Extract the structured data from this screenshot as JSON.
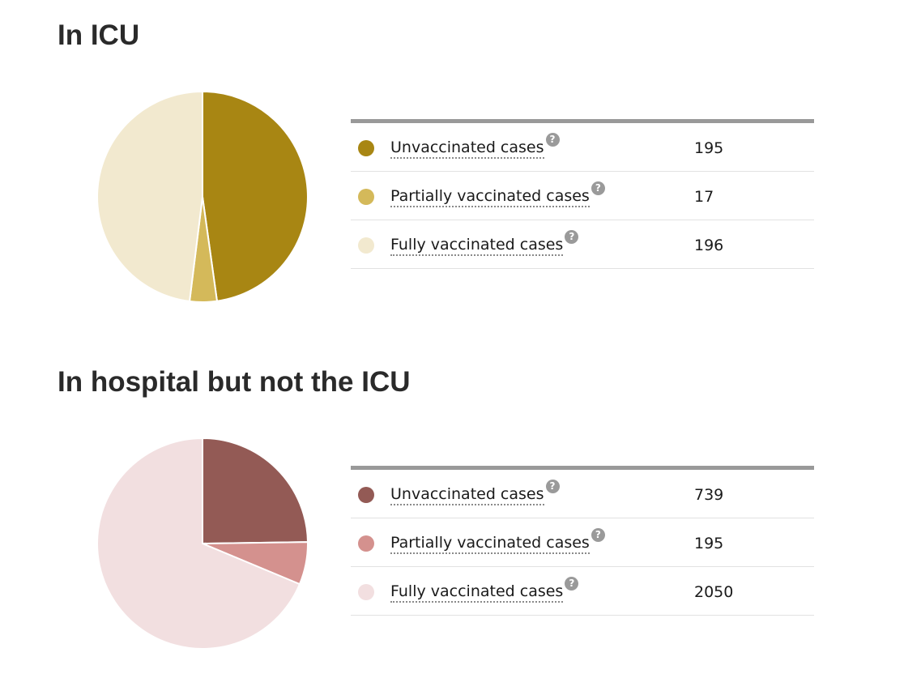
{
  "chart_data": [
    {
      "type": "pie",
      "title": "In ICU",
      "categories": [
        "Unvaccinated cases",
        "Partially vaccinated cases",
        "Fully vaccinated cases"
      ],
      "values": [
        195,
        17,
        196
      ],
      "colors": [
        "#a88613",
        "#d4b95a",
        "#f2e9cf"
      ],
      "help_icon": "question-icon",
      "legend": "right"
    },
    {
      "type": "pie",
      "title": "In hospital but not the ICU",
      "categories": [
        "Unvaccinated cases",
        "Partially vaccinated cases",
        "Fully vaccinated cases"
      ],
      "values": [
        739,
        195,
        2050
      ],
      "colors": [
        "#935a55",
        "#d4918e",
        "#f2dfe0"
      ],
      "help_icon": "question-icon",
      "legend": "right"
    }
  ]
}
